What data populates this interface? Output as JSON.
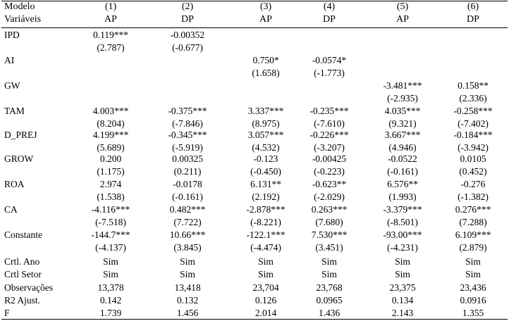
{
  "header": {
    "model_label": "Modelo",
    "variables_label": "Variáveis",
    "columns": [
      {
        "num": "(1)",
        "dep": "AP"
      },
      {
        "num": "(2)",
        "dep": "DP"
      },
      {
        "num": "(3)",
        "dep": "AP"
      },
      {
        "num": "(4)",
        "dep": "DP"
      },
      {
        "num": "(5)",
        "dep": "AP"
      },
      {
        "num": "(6)",
        "dep": "DP"
      }
    ]
  },
  "variables": [
    {
      "name": "IPD",
      "coef": [
        "0.119***",
        "-0.00352",
        "",
        "",
        "",
        ""
      ],
      "t": [
        "(2.787)",
        "(-0.677)",
        "",
        "",
        "",
        ""
      ]
    },
    {
      "name": "AI",
      "coef": [
        "",
        "",
        "0.750*",
        "-0.0574*",
        "",
        ""
      ],
      "t": [
        "",
        "",
        "(1.658)",
        "(-1.773)",
        "",
        ""
      ]
    },
    {
      "name": "GW",
      "coef": [
        "",
        "",
        "",
        "",
        "-3.481***",
        "0.158**"
      ],
      "t": [
        "",
        "",
        "",
        "",
        "(-2.935)",
        "(2.336)"
      ]
    },
    {
      "name": "TAM",
      "coef": [
        "4.003***",
        "-0.375***",
        "3.337***",
        "-0.235***",
        "4.035***",
        "-0.258***"
      ],
      "t": [
        "(8.204)",
        "(-7.846)",
        "(8.975)",
        "(-7.610)",
        "(9.321)",
        "(-7.402)"
      ]
    },
    {
      "name": "D_PREJ",
      "coef": [
        "4.199***",
        "-0.345***",
        "3.057***",
        "-0.226***",
        "3.667***",
        "-0.184***"
      ],
      "t": [
        "(5.689)",
        "(-5.919)",
        "(4.532)",
        "(-3.207)",
        "(4.946)",
        "(-3.942)"
      ]
    },
    {
      "name": "GROW",
      "coef": [
        "0.200",
        "0.00325",
        "-0.123",
        "-0.00425",
        "-0.0522",
        "0.0105"
      ],
      "t": [
        "(1.175)",
        "(0.211)",
        "(-0.450)",
        "(-0.223)",
        "(-0.161)",
        "(0.452)"
      ]
    },
    {
      "name": "ROA",
      "coef": [
        "2.974",
        "-0.0178",
        "6.131**",
        "-0.623**",
        "6.576**",
        "-0.276"
      ],
      "t": [
        "(1.538)",
        "(-0.161)",
        "(2.192)",
        "(-2.029)",
        "(1.993)",
        "(-1.382)"
      ]
    },
    {
      "name": "CA",
      "coef": [
        "-4.116***",
        "0.482***",
        "-2.878***",
        "0.263***",
        "-3.379***",
        "0.276***"
      ],
      "t": [
        "(-7.518)",
        "(7.722)",
        "(-8.221)",
        "(7.680)",
        "(-8.501)",
        "(7.288)"
      ]
    },
    {
      "name": "Constante",
      "coef": [
        "-144.7***",
        "10.66***",
        "-122.1***",
        "7.530***",
        "-93.00***",
        "6.109***"
      ],
      "t": [
        "(-4.137)",
        "(3.845)",
        "(-4.474)",
        "(3.451)",
        "(-4.231)",
        "(2.879)"
      ]
    }
  ],
  "footer": [
    {
      "name": "Crtl. Ano",
      "values": [
        "Sim",
        "Sim",
        "Sim",
        "Sim",
        "Sim",
        "Sim"
      ]
    },
    {
      "name": "Crtl Setor",
      "values": [
        "Sim",
        "Sim",
        "Sim",
        "Sim",
        "Sim",
        "Sim"
      ]
    },
    {
      "name": "Observações",
      "values": [
        "13,378",
        "13,418",
        "23,704",
        "23,768",
        "23,375",
        "23,436"
      ]
    },
    {
      "name": "R2 Ajust.",
      "values": [
        "0.142",
        "0.132",
        "0.126",
        "0.0965",
        "0.134",
        "0.0916"
      ]
    },
    {
      "name": "F",
      "values": [
        "1.739",
        "1.456",
        "2.014",
        "1.436",
        "2.143",
        "1.355"
      ]
    }
  ]
}
